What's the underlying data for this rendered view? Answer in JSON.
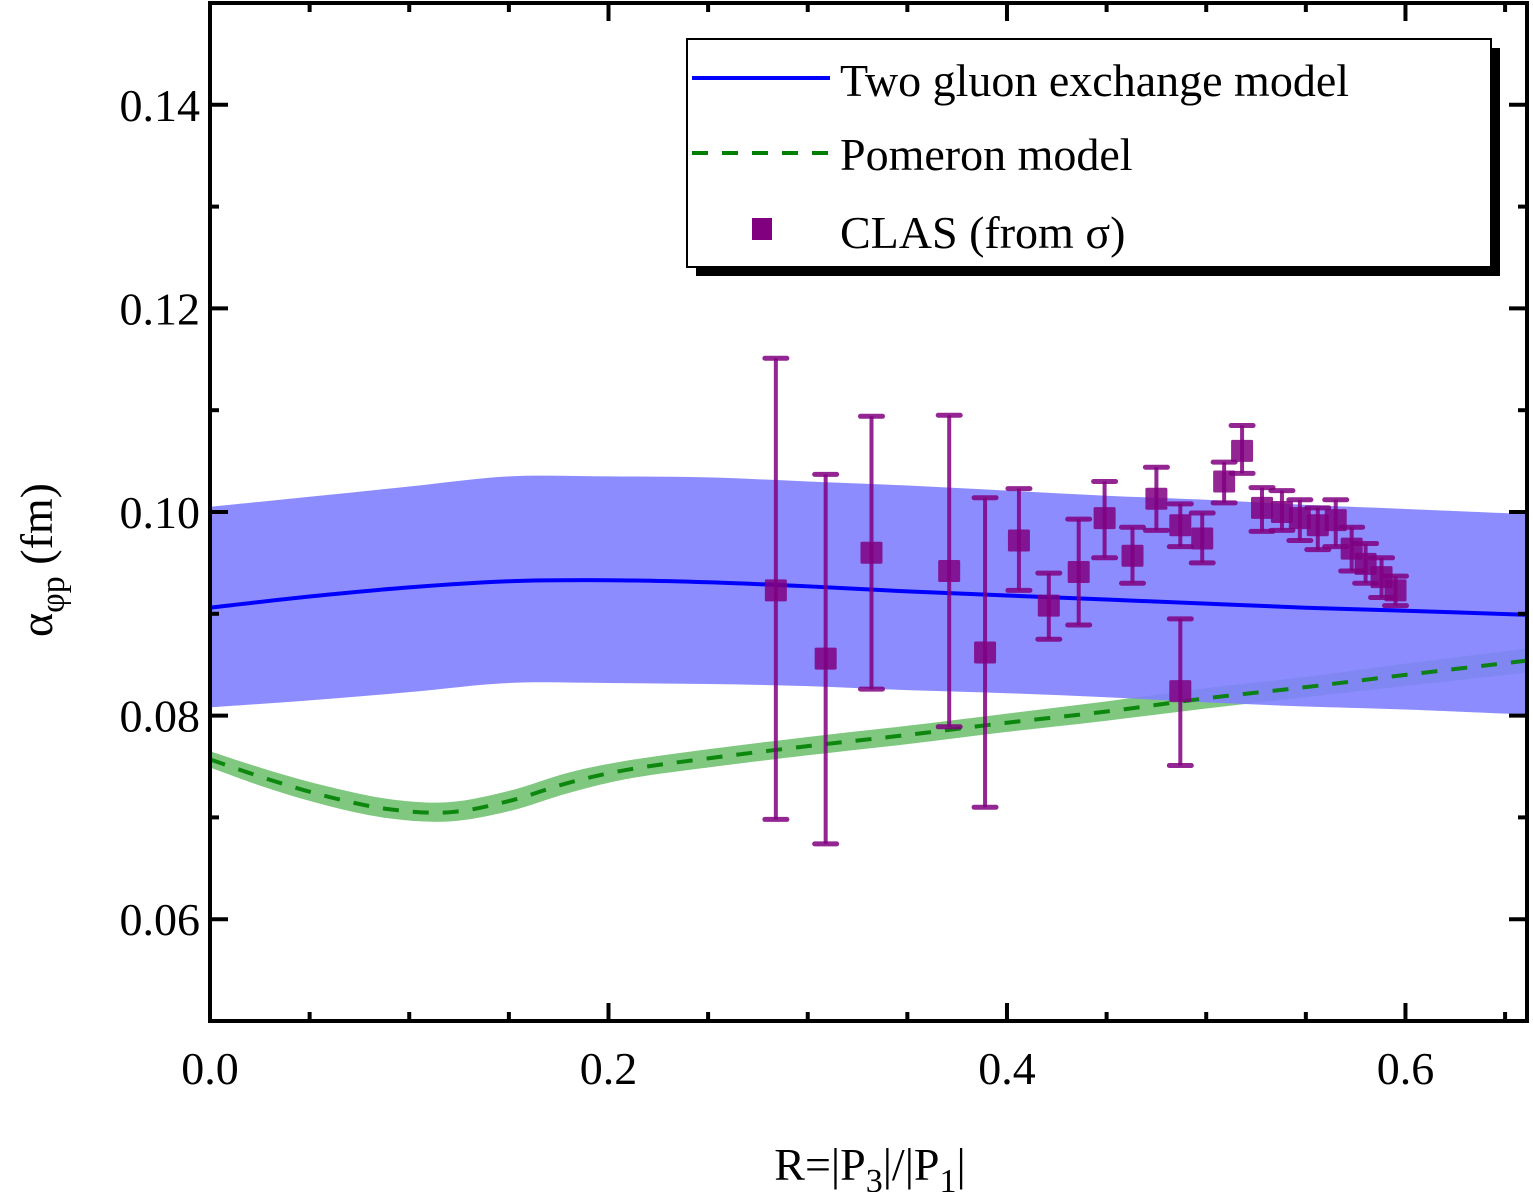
{
  "chart_data": {
    "type": "line",
    "title": "",
    "xlabel": "R=|P3|/|P1|",
    "xlabel_parts": {
      "prefix": "R=|P",
      "sub1": "3",
      "mid": "|/|P",
      "sub2": "1",
      "suffix": "|"
    },
    "ylabel": "α_φp (fm)",
    "ylabel_parts": {
      "main": "α",
      "sub": "φp",
      "unit": " (fm)"
    },
    "xlim": [
      0.0,
      0.661
    ],
    "ylim": [
      0.05,
      0.15
    ],
    "x_ticks": [
      0.0,
      0.2,
      0.4,
      0.6
    ],
    "x_tick_labels": [
      "0.0",
      "0.2",
      "0.4",
      "0.6"
    ],
    "x_minor_step": 0.05,
    "y_ticks": [
      0.06,
      0.08,
      0.1,
      0.12,
      0.14
    ],
    "y_tick_labels": [
      "0.06",
      "0.08",
      "0.10",
      "0.12",
      "0.14"
    ],
    "y_minor_step": 0.01,
    "grid": false,
    "legend_position": "top-right",
    "colors": {
      "two_gluon_line": "#0000ff",
      "two_gluon_band": "#8080ff",
      "pomeron_line": "#008000",
      "pomeron_band": "#80c880",
      "clas": "#800080"
    },
    "series": [
      {
        "name": "Two gluon exchange model",
        "kind": "line-with-band",
        "style": "solid",
        "x": [
          0.0,
          0.05,
          0.1,
          0.15,
          0.2,
          0.25,
          0.3,
          0.35,
          0.4,
          0.45,
          0.5,
          0.55,
          0.6,
          0.661
        ],
        "y": [
          0.0906,
          0.0917,
          0.0926,
          0.0932,
          0.0933,
          0.0931,
          0.0927,
          0.0922,
          0.0918,
          0.0914,
          0.091,
          0.0906,
          0.0903,
          0.0899
        ],
        "upper": [
          0.1005,
          0.1015,
          0.1025,
          0.1035,
          0.1035,
          0.1034,
          0.103,
          0.1026,
          0.1021,
          0.1016,
          0.1012,
          0.1007,
          0.1003,
          0.0998
        ],
        "lower": [
          0.0808,
          0.0815,
          0.0823,
          0.0832,
          0.0832,
          0.0831,
          0.0829,
          0.0825,
          0.0822,
          0.0818,
          0.0813,
          0.0809,
          0.0806,
          0.0801
        ]
      },
      {
        "name": "Pomeron model",
        "kind": "line-with-band",
        "style": "dashed",
        "x": [
          0.0,
          0.03,
          0.06,
          0.09,
          0.12,
          0.15,
          0.18,
          0.21,
          0.25,
          0.3,
          0.35,
          0.4,
          0.45,
          0.5,
          0.55,
          0.6,
          0.661
        ],
        "y": [
          0.0757,
          0.0737,
          0.072,
          0.0708,
          0.0705,
          0.0716,
          0.0734,
          0.0747,
          0.0758,
          0.077,
          0.0781,
          0.0793,
          0.0804,
          0.0817,
          0.0828,
          0.084,
          0.0854
        ],
        "upper": [
          0.0765,
          0.0746,
          0.073,
          0.0718,
          0.0715,
          0.0726,
          0.0744,
          0.0756,
          0.0767,
          0.0779,
          0.079,
          0.0802,
          0.0814,
          0.0827,
          0.0838,
          0.0851,
          0.0866
        ],
        "lower": [
          0.0749,
          0.0728,
          0.0711,
          0.0699,
          0.0696,
          0.0706,
          0.0724,
          0.0738,
          0.0749,
          0.0761,
          0.0772,
          0.0784,
          0.0795,
          0.0807,
          0.0818,
          0.0829,
          0.0842
        ]
      },
      {
        "name": "CLAS (from σ)",
        "kind": "scatter-errorbar",
        "marker": "square",
        "x": [
          0.284,
          0.309,
          0.332,
          0.371,
          0.389,
          0.406,
          0.421,
          0.436,
          0.449,
          0.463,
          0.475,
          0.487,
          0.487,
          0.498,
          0.509,
          0.518,
          0.528,
          0.538,
          0.547,
          0.556,
          0.565,
          0.573,
          0.58,
          0.588,
          0.595
        ],
        "y": [
          0.0923,
          0.0856,
          0.096,
          0.0942,
          0.0862,
          0.0972,
          0.0908,
          0.0941,
          0.0994,
          0.0957,
          0.1013,
          0.0987,
          0.0824,
          0.0974,
          0.103,
          0.106,
          0.1004,
          0.1,
          0.0994,
          0.0987,
          0.0992,
          0.0964,
          0.0949,
          0.0936,
          0.0923
        ],
        "upper": [
          0.1151,
          0.1037,
          0.1094,
          0.1095,
          0.1014,
          0.1023,
          0.094,
          0.0993,
          0.103,
          0.0985,
          0.1044,
          0.1008,
          0.0895,
          0.0999,
          0.1049,
          0.1085,
          0.1024,
          0.1021,
          0.1012,
          0.1004,
          0.1012,
          0.0985,
          0.0969,
          0.0955,
          0.0937
        ],
        "lower": [
          0.0698,
          0.0674,
          0.0826,
          0.0789,
          0.071,
          0.0923,
          0.0875,
          0.0889,
          0.0955,
          0.093,
          0.0982,
          0.0966,
          0.0751,
          0.095,
          0.1009,
          0.1038,
          0.0981,
          0.0982,
          0.0972,
          0.0963,
          0.0966,
          0.0942,
          0.093,
          0.0916,
          0.0908
        ]
      }
    ],
    "legend": [
      {
        "label": "Two gluon exchange model",
        "symbol": "solid-line"
      },
      {
        "label": "Pomeron model",
        "symbol": "dashed-line"
      },
      {
        "label": "CLAS (from σ)",
        "symbol": "square"
      }
    ]
  }
}
